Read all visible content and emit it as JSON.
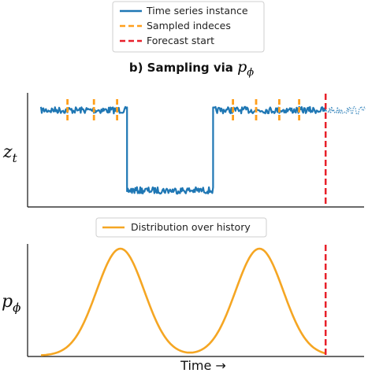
{
  "legend_top": {
    "items": [
      {
        "label": "Time series instance",
        "color": "#1f77b4",
        "style": "solid"
      },
      {
        "label": "Sampled indeces",
        "color": "#ff9f1c",
        "style": "dashed"
      },
      {
        "label": "Forecast start",
        "color": "#e8202a",
        "style": "dashed"
      }
    ]
  },
  "legend_bottom": {
    "items": [
      {
        "label": "Distribution over history",
        "color": "#f5a623",
        "style": "solid"
      }
    ]
  },
  "chart_data": [
    {
      "type": "line",
      "title_prefix": "b) Sampling via ",
      "title_symbol": "p",
      "title_subscript": "ϕ",
      "ylabel": "z",
      "ylabel_subscript": "t",
      "x_range": [
        0,
        100
      ],
      "forecast_start_x": 86,
      "series": [
        {
          "name": "Time series instance",
          "segments": [
            {
              "x_start": 0,
              "x_end": 26,
              "level": "high"
            },
            {
              "x_start": 26,
              "x_end": 52,
              "level": "low"
            },
            {
              "x_start": 52,
              "x_end": 86,
              "level": "high"
            }
          ]
        }
      ],
      "forecast_continuation": {
        "x_start": 86,
        "x_end": 98,
        "level": "high"
      },
      "sampled_indices": [
        8,
        16,
        23,
        58,
        65,
        72,
        78
      ]
    },
    {
      "type": "line",
      "ylabel": "p",
      "ylabel_subscript": "ϕ",
      "xlabel": "Time →",
      "x_range": [
        0,
        100
      ],
      "forecast_start_x": 86,
      "series": [
        {
          "name": "Distribution over history",
          "peaks": [
            24,
            66
          ]
        }
      ]
    }
  ]
}
